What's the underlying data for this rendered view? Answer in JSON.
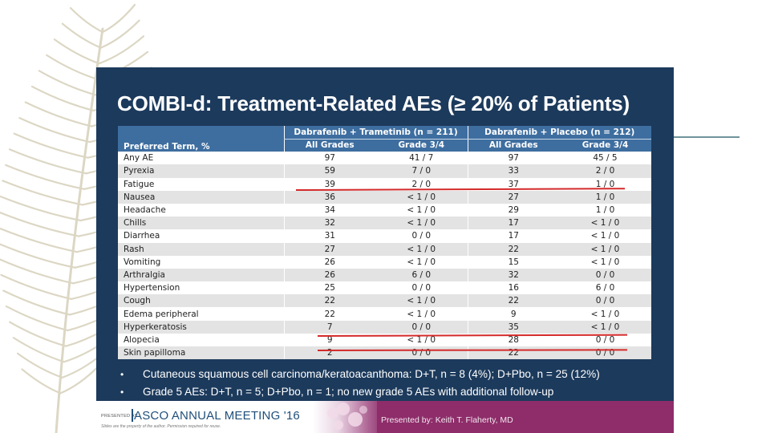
{
  "title": "COMBI-d: Treatment-Related AEs (≥ 20% of Patients)",
  "table": {
    "term_header": "Preferred Term, %",
    "groups": [
      "Dabrafenib + Trametinib (n = 211)",
      "Dabrafenib + Placebo (n = 212)"
    ],
    "subheaders": [
      "All Grades",
      "Grade 3/4",
      "All Grades",
      "Grade 3/4"
    ],
    "rows": [
      {
        "term": "Any AE",
        "dt_all": "97",
        "dt_g34": "41 / 7",
        "dp_all": "97",
        "dp_g34": "45 / 5"
      },
      {
        "term": "Pyrexia",
        "dt_all": "59",
        "dt_g34": "7 / 0",
        "dp_all": "33",
        "dp_g34": "2 / 0"
      },
      {
        "term": "Fatigue",
        "dt_all": "39",
        "dt_g34": "2 / 0",
        "dp_all": "37",
        "dp_g34": "1 / 0"
      },
      {
        "term": "Nausea",
        "dt_all": "36",
        "dt_g34": "< 1 / 0",
        "dp_all": "27",
        "dp_g34": "1 / 0"
      },
      {
        "term": "Headache",
        "dt_all": "34",
        "dt_g34": "< 1 / 0",
        "dp_all": "29",
        "dp_g34": "1 / 0"
      },
      {
        "term": "Chills",
        "dt_all": "32",
        "dt_g34": "< 1 / 0",
        "dp_all": "17",
        "dp_g34": "< 1 / 0"
      },
      {
        "term": "Diarrhea",
        "dt_all": "31",
        "dt_g34": "0 / 0",
        "dp_all": "17",
        "dp_g34": "< 1 / 0"
      },
      {
        "term": "Rash",
        "dt_all": "27",
        "dt_g34": "< 1 / 0",
        "dp_all": "22",
        "dp_g34": "< 1 / 0"
      },
      {
        "term": "Vomiting",
        "dt_all": "26",
        "dt_g34": "< 1 / 0",
        "dp_all": "15",
        "dp_g34": "< 1 / 0"
      },
      {
        "term": "Arthralgia",
        "dt_all": "26",
        "dt_g34": "6 / 0",
        "dp_all": "32",
        "dp_g34": "0 / 0"
      },
      {
        "term": "Hypertension",
        "dt_all": "25",
        "dt_g34": "0 / 0",
        "dp_all": "16",
        "dp_g34": "6 / 0"
      },
      {
        "term": "Cough",
        "dt_all": "22",
        "dt_g34": "< 1 / 0",
        "dp_all": "22",
        "dp_g34": "0 / 0"
      },
      {
        "term": "Edema peripheral",
        "dt_all": "22",
        "dt_g34": "< 1 / 0",
        "dp_all": "9",
        "dp_g34": "< 1 / 0"
      },
      {
        "term": "Hyperkeratosis",
        "dt_all": "7",
        "dt_g34": "0 / 0",
        "dp_all": "35",
        "dp_g34": "< 1 / 0"
      },
      {
        "term": "Alopecia",
        "dt_all": "9",
        "dt_g34": "< 1 / 0",
        "dp_all": "28",
        "dp_g34": "0 / 0"
      },
      {
        "term": "Skin papilloma",
        "dt_all": "2",
        "dt_g34": "0 / 0",
        "dp_all": "22",
        "dp_g34": "0 / 0"
      }
    ]
  },
  "bullets": [
    "Cutaneous squamous cell carcinoma/keratoacanthoma: D+T, n = 8 (4%); D+Pbo, n = 25 (12%)",
    "Grade 5 AEs: D+T, n = 5; D+Pbo, n = 1; no new grade 5 AEs with additional follow-up"
  ],
  "bullet_symbol": "•",
  "footer": {
    "presented_at": "PRESENTED AT:",
    "meeting": "ASCO ANNUAL MEETING '16",
    "disclaimer": "Slides are the property of the author. Permission required for reuse.",
    "presenter": "Presented by: Keith T. Flaherty, MD"
  },
  "colors": {
    "slide_bg": "#1c3a5c",
    "table_header": "#3e6ea0",
    "row_alt": "#e3e3e3",
    "highlight_line": "#d42a2a",
    "footer_magenta": "#8e2d6a",
    "meeting_blue": "#1f4f7a"
  },
  "icons": [
    "leaf-frond-decoration"
  ]
}
